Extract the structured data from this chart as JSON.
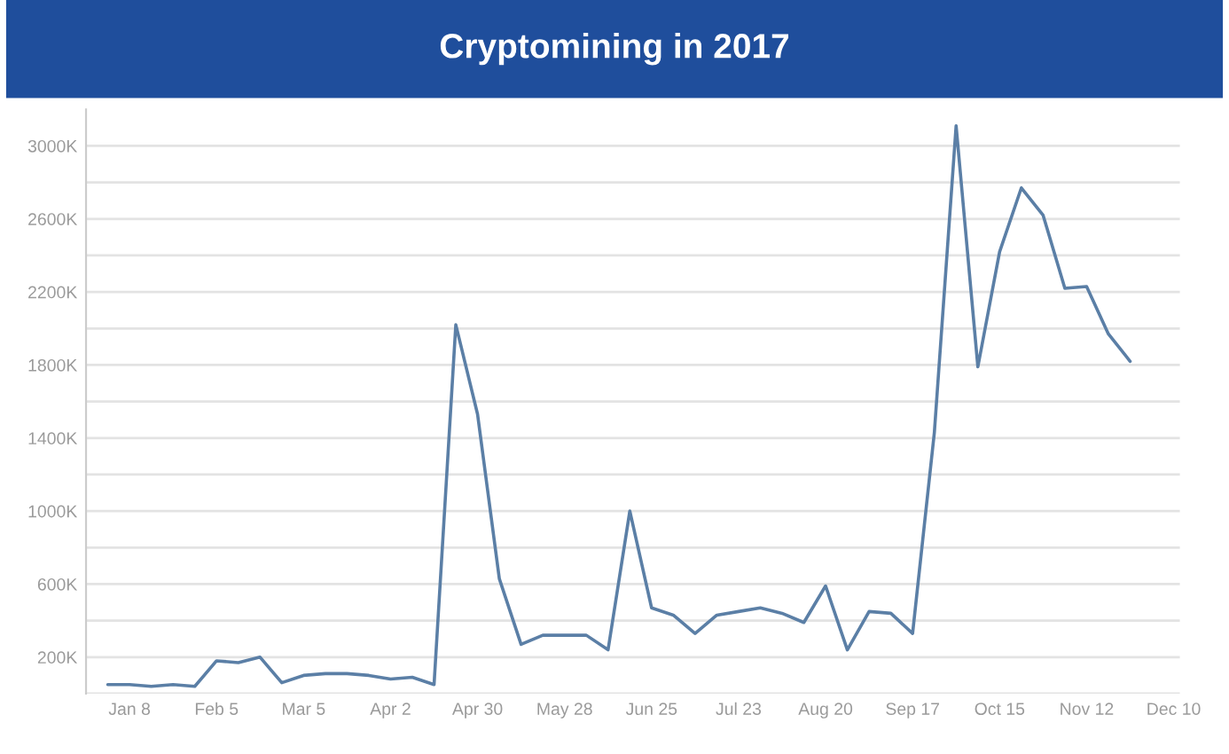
{
  "chart_data": {
    "type": "line",
    "title": "Cryptomining in 2017",
    "x": [
      "2017-01-01",
      "2017-01-08",
      "2017-01-15",
      "2017-01-22",
      "2017-01-29",
      "2017-02-05",
      "2017-02-12",
      "2017-02-19",
      "2017-02-26",
      "2017-03-05",
      "2017-03-12",
      "2017-03-19",
      "2017-03-26",
      "2017-04-02",
      "2017-04-09",
      "2017-04-16",
      "2017-04-23",
      "2017-04-30",
      "2017-05-07",
      "2017-05-14",
      "2017-05-21",
      "2017-05-28",
      "2017-06-04",
      "2017-06-11",
      "2017-06-18",
      "2017-06-25",
      "2017-07-02",
      "2017-07-09",
      "2017-07-16",
      "2017-07-23",
      "2017-07-30",
      "2017-08-06",
      "2017-08-13",
      "2017-08-20",
      "2017-08-27",
      "2017-09-03",
      "2017-09-10",
      "2017-09-17",
      "2017-09-24",
      "2017-10-01",
      "2017-10-08",
      "2017-10-15",
      "2017-10-22",
      "2017-10-29",
      "2017-11-05",
      "2017-11-12",
      "2017-11-19",
      "2017-11-26"
    ],
    "series": [
      {
        "color": "#5b7fa6",
        "values": [
          50,
          50,
          40,
          50,
          40,
          180,
          170,
          200,
          60,
          100,
          110,
          110,
          100,
          80,
          90,
          50,
          2020,
          1530,
          630,
          270,
          320,
          320,
          320,
          240,
          1000,
          470,
          430,
          330,
          430,
          450,
          470,
          440,
          390,
          590,
          240,
          450,
          440,
          330,
          1430,
          3110,
          1790,
          2420,
          2770,
          2620,
          2220,
          2230,
          1970,
          1820
        ]
      }
    ],
    "xlim": [
      "2016-12-25",
      "2017-12-12"
    ],
    "xticks": [
      {
        "value": "2017-01-08",
        "label": "Jan 8"
      },
      {
        "value": "2017-02-05",
        "label": "Feb 5"
      },
      {
        "value": "2017-03-05",
        "label": "Mar 5"
      },
      {
        "value": "2017-04-02",
        "label": "Apr 2"
      },
      {
        "value": "2017-04-30",
        "label": "Apr 30"
      },
      {
        "value": "2017-05-28",
        "label": "May 28"
      },
      {
        "value": "2017-06-25",
        "label": "Jun 25"
      },
      {
        "value": "2017-07-23",
        "label": "Jul 23"
      },
      {
        "value": "2017-08-20",
        "label": "Aug 20"
      },
      {
        "value": "2017-09-17",
        "label": "Sep 17"
      },
      {
        "value": "2017-10-15",
        "label": "Oct 15"
      },
      {
        "value": "2017-11-12",
        "label": "Nov 12"
      },
      {
        "value": "2017-12-10",
        "label": "Dec 10"
      }
    ],
    "ylim": [
      0,
      3200
    ],
    "yticks": [
      {
        "value": 0,
        "label": null
      },
      {
        "value": 200,
        "label": "200K"
      },
      {
        "value": 400,
        "label": null
      },
      {
        "value": 600,
        "label": "600K"
      },
      {
        "value": 800,
        "label": null
      },
      {
        "value": 1000,
        "label": "1000K"
      },
      {
        "value": 1200,
        "label": null
      },
      {
        "value": 1400,
        "label": "1400K"
      },
      {
        "value": 1600,
        "label": null
      },
      {
        "value": 1800,
        "label": "1800K"
      },
      {
        "value": 2000,
        "label": null
      },
      {
        "value": 2200,
        "label": "2200K"
      },
      {
        "value": 2400,
        "label": null
      },
      {
        "value": 2600,
        "label": "2600K"
      },
      {
        "value": 2800,
        "label": null
      },
      {
        "value": 3000,
        "label": "3000K"
      }
    ],
    "grid": "y",
    "marker": "none",
    "line_style": "solid"
  }
}
